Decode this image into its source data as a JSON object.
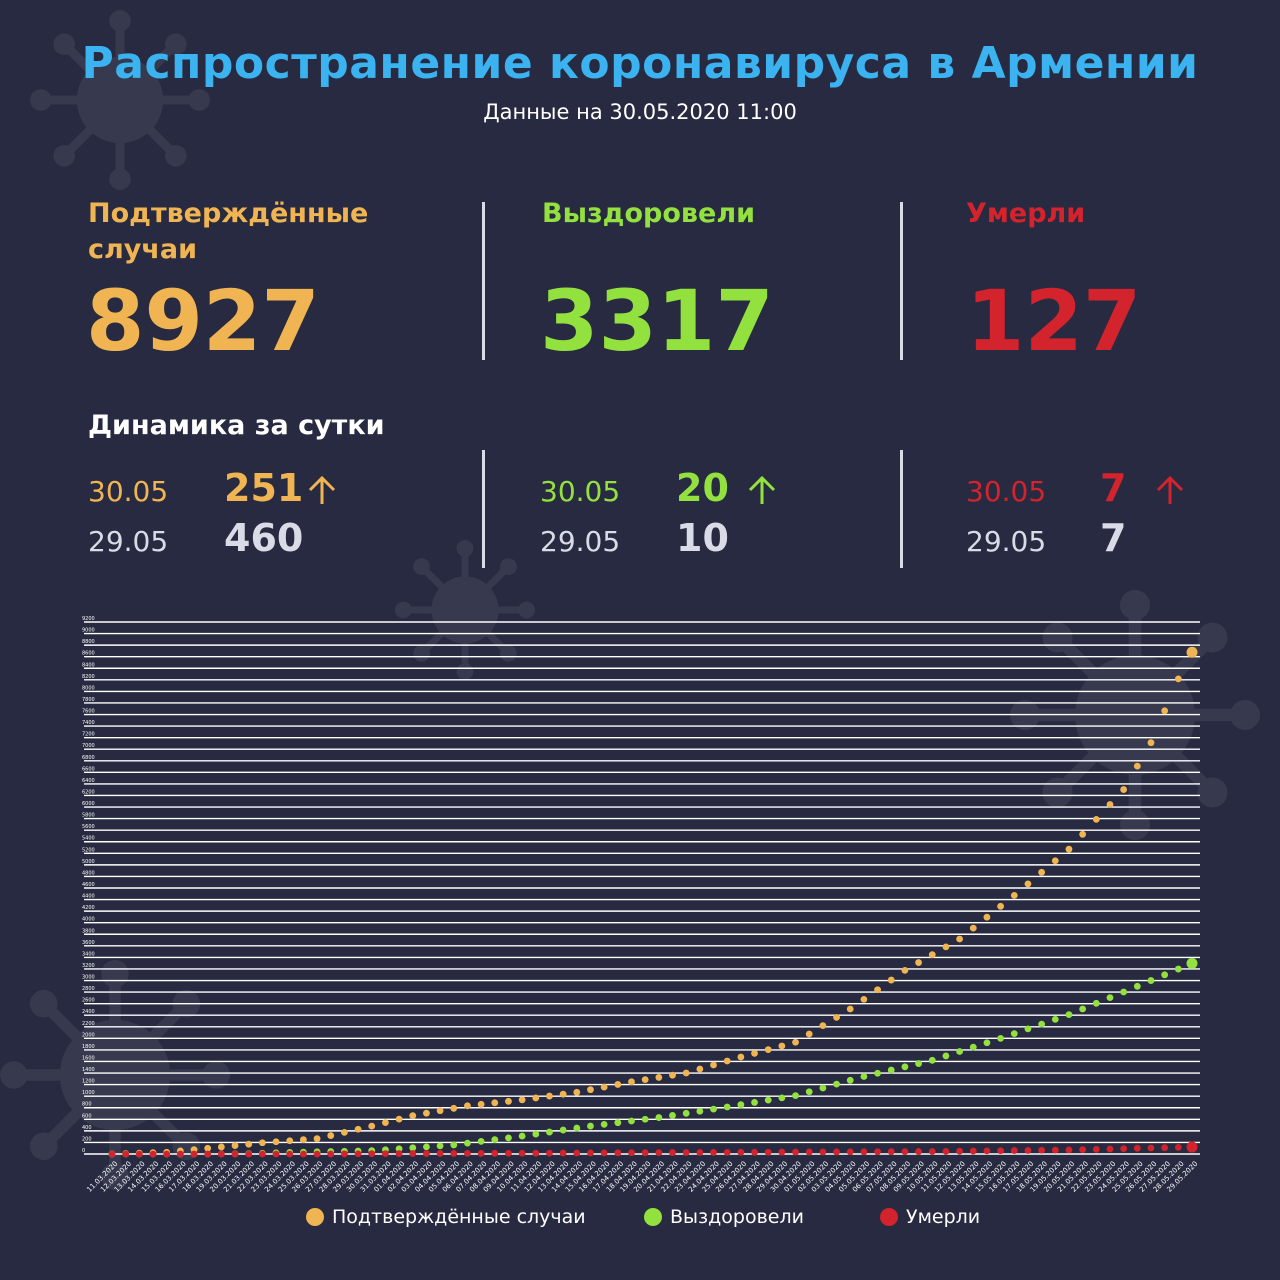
{
  "header": {
    "title": "Распространение коронавируса в Армении",
    "subtitle": "Данные на 30.05.2020 11:00"
  },
  "colors": {
    "confirmed": "#f0b552",
    "recovered": "#93e13f",
    "deaths": "#d3232c",
    "muted": "#d9dbe6"
  },
  "stats": {
    "confirmed": {
      "label": "Подтверждённые случаи",
      "value": "8927"
    },
    "recovered": {
      "label": "Выздоровели",
      "value": "3317"
    },
    "deaths": {
      "label": "Умерли",
      "value": "127"
    }
  },
  "dynamics": {
    "heading": "Динамика за сутки",
    "confirmed": {
      "date1": "30.05",
      "value1": "251",
      "date2": "29.05",
      "value2": "460"
    },
    "recovered": {
      "date1": "30.05",
      "value1": "20",
      "date2": "29.05",
      "value2": "10"
    },
    "deaths": {
      "date1": "30.05",
      "value1": "7",
      "date2": "29.05",
      "value2": "7"
    }
  },
  "chart_data": {
    "type": "scatter",
    "title": "",
    "xlabel": "",
    "ylabel": "",
    "x_start": "11.03.2020",
    "x_end": "29.05.2020",
    "ylim": [
      0,
      9200
    ],
    "ytick_step": 200,
    "grid": true,
    "legend_position": "bottom",
    "series": [
      {
        "name": "Подтверждённые случаи",
        "color": "#f0b552",
        "anchors": [
          [
            "11.03.2020",
            1
          ],
          [
            "15.03.2020",
            30
          ],
          [
            "19.03.2020",
            122
          ],
          [
            "22.03.2020",
            194
          ],
          [
            "26.03.2020",
            265
          ],
          [
            "30.03.2020",
            482
          ],
          [
            "02.04.2020",
            663
          ],
          [
            "06.04.2020",
            833
          ],
          [
            "10.04.2020",
            937
          ],
          [
            "14.04.2020",
            1067
          ],
          [
            "18.04.2020",
            1248
          ],
          [
            "22.04.2020",
            1401
          ],
          [
            "26.04.2020",
            1677
          ],
          [
            "30.04.2020",
            1932
          ],
          [
            "04.05.2020",
            2507
          ],
          [
            "08.05.2020",
            3175
          ],
          [
            "12.05.2020",
            3718
          ],
          [
            "16.05.2020",
            4472
          ],
          [
            "20.05.2020",
            5271
          ],
          [
            "24.05.2020",
            6302
          ],
          [
            "26.05.2020",
            7113
          ],
          [
            "28.05.2020",
            8216
          ],
          [
            "29.05.2020",
            8676
          ],
          [
            "30.05.2020",
            8927
          ]
        ]
      },
      {
        "name": "Выздоровели",
        "color": "#93e13f",
        "anchors": [
          [
            "11.03.2020",
            0
          ],
          [
            "18.03.2020",
            0
          ],
          [
            "21.03.2020",
            5
          ],
          [
            "24.03.2020",
            28
          ],
          [
            "30.03.2020",
            57
          ],
          [
            "05.04.2020",
            157
          ],
          [
            "10.04.2020",
            310
          ],
          [
            "15.04.2020",
            483
          ],
          [
            "20.04.2020",
            630
          ],
          [
            "25.04.2020",
            813
          ],
          [
            "30.04.2020",
            1010
          ],
          [
            "05.05.2020",
            1340
          ],
          [
            "10.05.2020",
            1620
          ],
          [
            "15.05.2020",
            2000
          ],
          [
            "20.05.2020",
            2410
          ],
          [
            "25.05.2020",
            2900
          ],
          [
            "29.05.2020",
            3297
          ],
          [
            "30.05.2020",
            3317
          ]
        ]
      },
      {
        "name": "Умерли",
        "color": "#d3232c",
        "anchors": [
          [
            "11.03.2020",
            0
          ],
          [
            "26.03.2020",
            0
          ],
          [
            "31.03.2020",
            7
          ],
          [
            "10.04.2020",
            13
          ],
          [
            "20.04.2020",
            24
          ],
          [
            "30.04.2020",
            32
          ],
          [
            "10.05.2020",
            43
          ],
          [
            "20.05.2020",
            70
          ],
          [
            "25.05.2020",
            98
          ],
          [
            "29.05.2020",
            120
          ],
          [
            "30.05.2020",
            127
          ]
        ]
      }
    ]
  }
}
